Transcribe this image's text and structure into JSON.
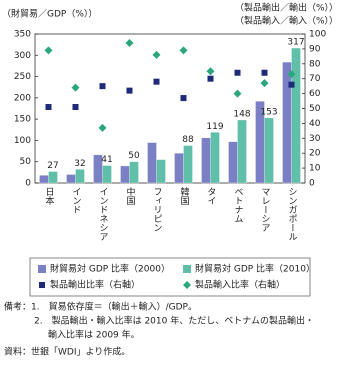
{
  "chart_data": {
    "type": "bar",
    "y_label": "（財貿易／GDP（%））",
    "y2_label": [
      "（製品輸出／輸出（%））",
      "（製品輸入／輸入（%））"
    ],
    "categories": [
      "日本",
      "インド",
      "インドネシア",
      "中国",
      "フィリピン",
      "韓国",
      "タイ",
      "ベトナム",
      "マレーシア",
      "シンガポール"
    ],
    "ylim": [
      0,
      350
    ],
    "yticks": [
      0,
      50,
      100,
      150,
      200,
      250,
      300,
      350
    ],
    "y2lim": [
      0,
      100
    ],
    "y2ticks": [
      0,
      10,
      20,
      30,
      40,
      50,
      60,
      70,
      80,
      90,
      100
    ],
    "series": [
      {
        "name": "財貿易対 GDP 比率（2000）",
        "type": "bar",
        "color": "#7b80c4",
        "values": [
          18,
          20,
          66,
          40,
          95,
          70,
          106,
          97,
          192,
          284
        ]
      },
      {
        "name": "財貿易対 GDP 比率（2010）",
        "type": "bar",
        "color": "#5fbfa8",
        "values": [
          27,
          32,
          41,
          50,
          55,
          88,
          119,
          148,
          153,
          317
        ],
        "value_labels": [
          "27",
          "32",
          "41",
          "50",
          null,
          "88",
          "119",
          "148",
          "153",
          "317"
        ]
      },
      {
        "name": "製品輸出比率（右軸）",
        "type": "scatter",
        "marker": "square",
        "axis": "y2",
        "color": "#1e2a7a",
        "values": [
          51,
          51,
          65,
          62,
          68,
          57,
          70,
          74,
          74,
          66
        ]
      },
      {
        "name": "製品輸入比率（右軸）",
        "type": "scatter",
        "marker": "diamond",
        "axis": "y2",
        "color": "#2aa67c",
        "values": [
          89,
          64,
          37,
          94,
          86,
          89,
          75,
          60,
          67,
          73
        ]
      }
    ]
  },
  "notes": [
    "備考：1.　貿易依存度＝（輸出＋輸入）/GDP。",
    "2.　製品輸出・輸入比率は 2010 年、ただし、ベトナムの製品輸出・",
    "輸入比率は 2009 年。",
    "資料：世銀「WDI」より作成。"
  ]
}
